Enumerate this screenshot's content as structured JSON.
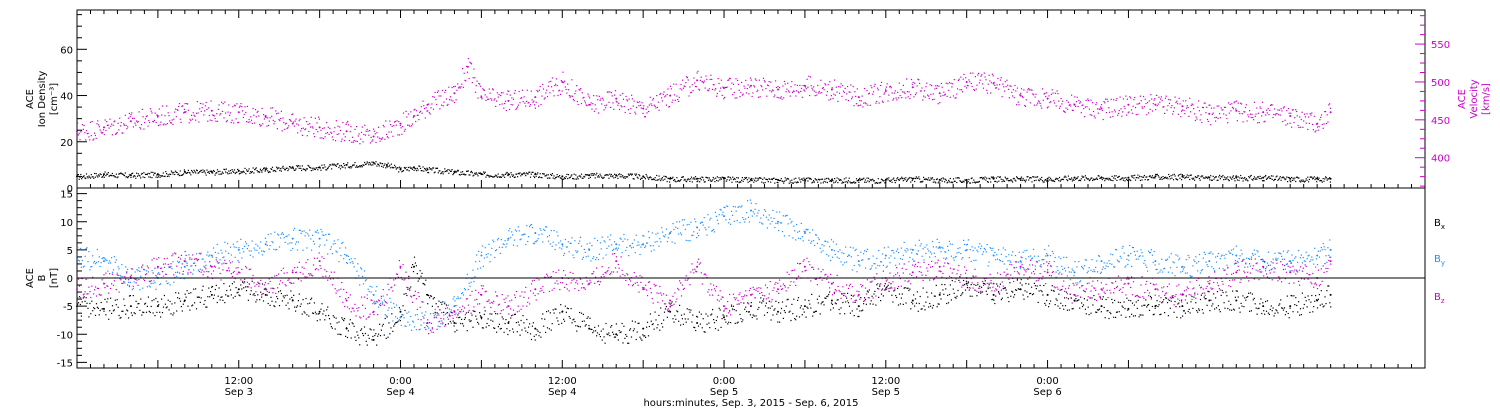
{
  "chart_data": [
    {
      "type": "scatter",
      "panel": "top",
      "left_axis": {
        "label_lines": [
          "ACE",
          "Ion Density",
          "[cm⁻³]"
        ],
        "ylim": [
          0,
          77
        ],
        "ticks": [
          0,
          20,
          40,
          60
        ],
        "color": "#000000"
      },
      "right_axis": {
        "label_lines": [
          "ACE",
          "Velocity",
          "[km/s]"
        ],
        "ylim": [
          360,
          595
        ],
        "ticks": [
          400,
          450,
          500,
          550
        ],
        "color": "#cc00cc"
      },
      "series": [
        {
          "name": "Ion Density",
          "axis": "left",
          "color": "#000000",
          "points": [
            [
              0,
              5
            ],
            [
              2,
              6
            ],
            [
              4,
              5.5
            ],
            [
              6,
              6
            ],
            [
              8,
              7
            ],
            [
              10,
              7
            ],
            [
              12,
              7.5
            ],
            [
              14,
              8
            ],
            [
              16,
              9
            ],
            [
              18,
              9
            ],
            [
              20,
              10
            ],
            [
              22,
              11
            ],
            [
              23,
              10
            ],
            [
              24,
              8
            ],
            [
              25,
              9
            ],
            [
              26,
              8
            ],
            [
              28,
              7
            ],
            [
              30,
              6
            ],
            [
              32,
              6
            ],
            [
              34,
              6
            ],
            [
              36,
              5
            ],
            [
              38,
              5.5
            ],
            [
              40,
              5.5
            ],
            [
              42,
              5
            ],
            [
              44,
              4
            ],
            [
              46,
              4
            ],
            [
              48,
              4
            ],
            [
              50,
              3.5
            ],
            [
              52,
              3.5
            ],
            [
              54,
              3.5
            ],
            [
              56,
              3.5
            ],
            [
              58,
              3.5
            ],
            [
              60,
              3.5
            ],
            [
              62,
              4
            ],
            [
              64,
              3.5
            ],
            [
              66,
              3.5
            ],
            [
              68,
              4
            ],
            [
              70,
              4
            ],
            [
              72,
              4
            ],
            [
              74,
              4.5
            ],
            [
              76,
              4.5
            ],
            [
              78,
              4.5
            ],
            [
              80,
              5
            ],
            [
              82,
              5
            ],
            [
              84,
              4.5
            ],
            [
              86,
              4.5
            ],
            [
              88,
              4.5
            ],
            [
              90,
              4
            ],
            [
              92,
              4
            ],
            [
              93,
              4
            ]
          ]
        },
        {
          "name": "Velocity",
          "axis": "right",
          "color": "#cc00cc",
          "points": [
            [
              0,
              435
            ],
            [
              2,
              440
            ],
            [
              4,
              448
            ],
            [
              6,
              455
            ],
            [
              8,
              460
            ],
            [
              10,
              462
            ],
            [
              12,
              460
            ],
            [
              14,
              455
            ],
            [
              16,
              445
            ],
            [
              18,
              440
            ],
            [
              20,
              435
            ],
            [
              22,
              428
            ],
            [
              24,
              445
            ],
            [
              25,
              455
            ],
            [
              26,
              470
            ],
            [
              28,
              485
            ],
            [
              29,
              520
            ],
            [
              30,
              480
            ],
            [
              32,
              475
            ],
            [
              34,
              480
            ],
            [
              36,
              500
            ],
            [
              38,
              470
            ],
            [
              40,
              478
            ],
            [
              42,
              465
            ],
            [
              44,
              482
            ],
            [
              46,
              502
            ],
            [
              48,
              492
            ],
            [
              50,
              495
            ],
            [
              52,
              490
            ],
            [
              54,
              495
            ],
            [
              56,
              490
            ],
            [
              58,
              480
            ],
            [
              60,
              488
            ],
            [
              62,
              493
            ],
            [
              64,
              485
            ],
            [
              66,
              500
            ],
            [
              68,
              498
            ],
            [
              70,
              482
            ],
            [
              72,
              478
            ],
            [
              74,
              470
            ],
            [
              76,
              465
            ],
            [
              78,
              470
            ],
            [
              80,
              470
            ],
            [
              82,
              468
            ],
            [
              84,
              458
            ],
            [
              86,
              462
            ],
            [
              88,
              460
            ],
            [
              90,
              455
            ],
            [
              92,
              445
            ],
            [
              93,
              460
            ]
          ]
        }
      ]
    },
    {
      "type": "scatter",
      "panel": "bottom",
      "left_axis": {
        "label_lines": [
          "ACE",
          "B",
          "[nT]"
        ],
        "ylim": [
          -16,
          16
        ],
        "ticks": [
          -15,
          -10,
          -5,
          0,
          5,
          10,
          15
        ],
        "color": "#000000"
      },
      "series": [
        {
          "name": "Bx",
          "color": "#000000",
          "points": [
            [
              0,
              -5
            ],
            [
              2,
              -5.5
            ],
            [
              4,
              -5
            ],
            [
              6,
              -5
            ],
            [
              8,
              -4
            ],
            [
              10,
              -3
            ],
            [
              12,
              -2
            ],
            [
              14,
              -3
            ],
            [
              16,
              -4
            ],
            [
              18,
              -6
            ],
            [
              20,
              -9
            ],
            [
              22,
              -11
            ],
            [
              24,
              -6
            ],
            [
              25,
              2
            ],
            [
              26,
              -3
            ],
            [
              28,
              -8
            ],
            [
              30,
              -7
            ],
            [
              32,
              -8
            ],
            [
              34,
              -9
            ],
            [
              36,
              -6
            ],
            [
              38,
              -9
            ],
            [
              40,
              -10
            ],
            [
              42,
              -9
            ],
            [
              44,
              -6
            ],
            [
              46,
              -8
            ],
            [
              48,
              -7
            ],
            [
              50,
              -5
            ],
            [
              52,
              -6
            ],
            [
              54,
              -5
            ],
            [
              56,
              -4
            ],
            [
              58,
              -5
            ],
            [
              60,
              -2
            ],
            [
              62,
              -4
            ],
            [
              64,
              -3
            ],
            [
              66,
              -1
            ],
            [
              68,
              -3
            ],
            [
              70,
              -2
            ],
            [
              72,
              -3
            ],
            [
              74,
              -4
            ],
            [
              76,
              -5
            ],
            [
              78,
              -5.5
            ],
            [
              80,
              -5
            ],
            [
              82,
              -5
            ],
            [
              84,
              -4
            ],
            [
              86,
              -4
            ],
            [
              88,
              -5
            ],
            [
              90,
              -5
            ],
            [
              92,
              -4
            ],
            [
              93,
              -3
            ]
          ]
        },
        {
          "name": "By",
          "color": "#1e90ff",
          "points": [
            [
              0,
              4
            ],
            [
              2,
              3
            ],
            [
              4,
              0
            ],
            [
              6,
              0
            ],
            [
              8,
              2
            ],
            [
              10,
              4
            ],
            [
              12,
              5
            ],
            [
              14,
              6
            ],
            [
              16,
              7
            ],
            [
              18,
              7
            ],
            [
              20,
              4
            ],
            [
              22,
              -3
            ],
            [
              24,
              -7
            ],
            [
              26,
              -8
            ],
            [
              28,
              -5
            ],
            [
              30,
              4
            ],
            [
              32,
              7
            ],
            [
              34,
              8
            ],
            [
              36,
              6
            ],
            [
              38,
              5
            ],
            [
              40,
              6
            ],
            [
              42,
              6
            ],
            [
              44,
              8
            ],
            [
              46,
              9
            ],
            [
              48,
              11
            ],
            [
              50,
              12
            ],
            [
              52,
              10
            ],
            [
              54,
              8
            ],
            [
              56,
              5
            ],
            [
              58,
              3
            ],
            [
              60,
              4
            ],
            [
              62,
              5
            ],
            [
              64,
              5.5
            ],
            [
              66,
              5
            ],
            [
              68,
              4
            ],
            [
              70,
              3
            ],
            [
              72,
              4
            ],
            [
              74,
              1
            ],
            [
              76,
              3
            ],
            [
              78,
              4
            ],
            [
              80,
              3
            ],
            [
              82,
              2
            ],
            [
              84,
              3
            ],
            [
              86,
              4
            ],
            [
              88,
              3
            ],
            [
              90,
              3
            ],
            [
              92,
              4
            ],
            [
              93,
              5
            ]
          ]
        },
        {
          "name": "Bz",
          "color": "#cc00cc",
          "points": [
            [
              0,
              -2
            ],
            [
              2,
              -1
            ],
            [
              4,
              0
            ],
            [
              6,
              2
            ],
            [
              8,
              3
            ],
            [
              10,
              2
            ],
            [
              12,
              1
            ],
            [
              14,
              -2
            ],
            [
              16,
              1
            ],
            [
              18,
              3
            ],
            [
              20,
              -4
            ],
            [
              22,
              -6
            ],
            [
              24,
              2
            ],
            [
              26,
              -8
            ],
            [
              28,
              -6
            ],
            [
              30,
              -3
            ],
            [
              32,
              -5
            ],
            [
              34,
              -2
            ],
            [
              36,
              0
            ],
            [
              38,
              -1
            ],
            [
              40,
              3
            ],
            [
              42,
              -2
            ],
            [
              44,
              -4
            ],
            [
              46,
              2
            ],
            [
              48,
              -5
            ],
            [
              50,
              -3
            ],
            [
              52,
              -2
            ],
            [
              54,
              2
            ],
            [
              56,
              -1
            ],
            [
              58,
              -3
            ],
            [
              60,
              0
            ],
            [
              62,
              1
            ],
            [
              64,
              2
            ],
            [
              66,
              0
            ],
            [
              68,
              -1
            ],
            [
              70,
              2
            ],
            [
              72,
              1
            ],
            [
              74,
              -3
            ],
            [
              76,
              -2
            ],
            [
              78,
              -1
            ],
            [
              80,
              -2
            ],
            [
              82,
              -3
            ],
            [
              84,
              -1
            ],
            [
              86,
              1
            ],
            [
              88,
              2
            ],
            [
              90,
              1
            ],
            [
              92,
              0
            ],
            [
              93,
              3
            ]
          ]
        }
      ],
      "legend": {
        "placement": "right",
        "entries": [
          {
            "text": "B",
            "sub": "x",
            "color": "#000000"
          },
          {
            "text": "B",
            "sub": "y",
            "color": "#1e90ff"
          },
          {
            "text": "B",
            "sub": "z",
            "color": "#cc00cc"
          }
        ]
      }
    }
  ],
  "x_axis": {
    "xlim_hours": [
      0,
      100
    ],
    "ticks": [
      {
        "hour": 0,
        "label": ""
      },
      {
        "hour": 6,
        "label": ""
      },
      {
        "hour": 12,
        "label": "12:00",
        "date": "Sep 3"
      },
      {
        "hour": 18,
        "label": ""
      },
      {
        "hour": 24,
        "label": "0:00",
        "date": "Sep 4"
      },
      {
        "hour": 30,
        "label": ""
      },
      {
        "hour": 36,
        "label": "12:00",
        "date": "Sep 4"
      },
      {
        "hour": 42,
        "label": ""
      },
      {
        "hour": 48,
        "label": "0:00",
        "date": "Sep 5"
      },
      {
        "hour": 54,
        "label": ""
      },
      {
        "hour": 60,
        "label": "12:00",
        "date": "Sep 5"
      },
      {
        "hour": 66,
        "label": ""
      },
      {
        "hour": 72,
        "label": "0:00",
        "date": "Sep 6"
      },
      {
        "hour": 78,
        "label": ""
      }
    ],
    "title": "hours:minutes, Sep.  3, 2015 - Sep.  6, 2015"
  }
}
